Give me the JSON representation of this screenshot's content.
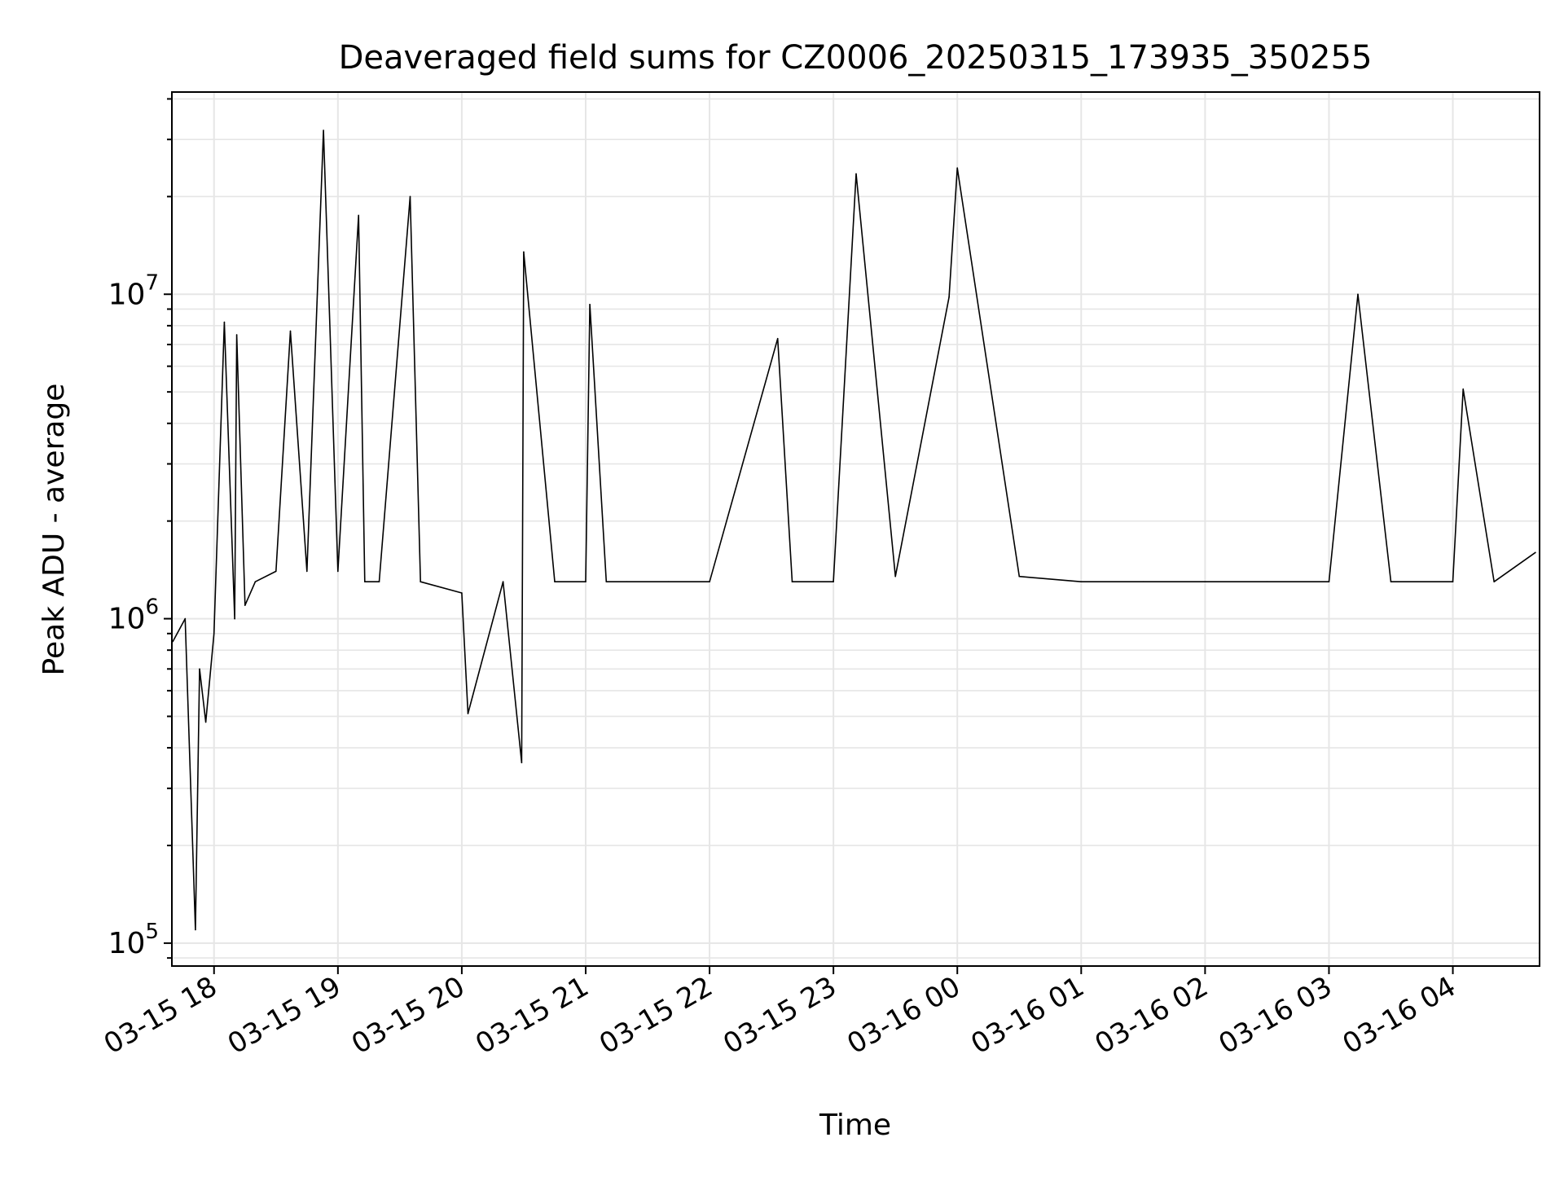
{
  "chart_data": {
    "type": "line",
    "title": "Deaveraged field sums for CZ0006_20250315_173935_350255",
    "xlabel": "Time",
    "ylabel": "Peak ADU - average",
    "y_scale": "log",
    "ylim": [
      85000,
      42000000
    ],
    "xlim": [
      "2025-03-15 17:39:35",
      "2025-03-16 04:42:00"
    ],
    "grid": true,
    "line_color": "#000000",
    "grid_color": "#e6e6e6",
    "x_ticks": [
      "2025-03-15 18:00",
      "2025-03-15 19:00",
      "2025-03-15 20:00",
      "2025-03-15 21:00",
      "2025-03-15 22:00",
      "2025-03-15 23:00",
      "2025-03-16 00:00",
      "2025-03-16 01:00",
      "2025-03-16 02:00",
      "2025-03-16 03:00",
      "2025-03-16 04:00"
    ],
    "x_tick_labels": [
      "03-15 18",
      "03-15 19",
      "03-15 20",
      "03-15 21",
      "03-15 22",
      "03-15 23",
      "03-16 00",
      "03-16 01",
      "03-16 02",
      "03-16 03",
      "03-16 04"
    ],
    "y_ticks": [
      100000,
      1000000,
      10000000
    ],
    "y_tick_labels": [
      {
        "base": "10",
        "exp": "5"
      },
      {
        "base": "10",
        "exp": "6"
      },
      {
        "base": "10",
        "exp": "7"
      }
    ],
    "series": [
      {
        "x": [
          "2025-03-15 17:40",
          "2025-03-15 17:46",
          "2025-03-15 17:51",
          "2025-03-15 17:53",
          "2025-03-15 17:56",
          "2025-03-15 18:00",
          "2025-03-15 18:05",
          "2025-03-15 18:10",
          "2025-03-15 18:11",
          "2025-03-15 18:15",
          "2025-03-15 18:20",
          "2025-03-15 18:30",
          "2025-03-15 18:37",
          "2025-03-15 18:45",
          "2025-03-15 18:53",
          "2025-03-15 19:00",
          "2025-03-15 19:10",
          "2025-03-15 19:13",
          "2025-03-15 19:20",
          "2025-03-15 19:35",
          "2025-03-15 19:40",
          "2025-03-15 20:00",
          "2025-03-15 20:03",
          "2025-03-15 20:20",
          "2025-03-15 20:29",
          "2025-03-15 20:30",
          "2025-03-15 20:45",
          "2025-03-15 21:00",
          "2025-03-15 21:02",
          "2025-03-15 21:10",
          "2025-03-15 21:20",
          "2025-03-15 21:40",
          "2025-03-15 22:00",
          "2025-03-15 22:33",
          "2025-03-15 22:40",
          "2025-03-15 23:00",
          "2025-03-15 23:11",
          "2025-03-15 23:30",
          "2025-03-15 23:56",
          "2025-03-16 00:00",
          "2025-03-16 00:30",
          "2025-03-16 01:00",
          "2025-03-16 01:30",
          "2025-03-16 02:00",
          "2025-03-16 02:30",
          "2025-03-16 03:00",
          "2025-03-16 03:14",
          "2025-03-16 03:30",
          "2025-03-16 04:00",
          "2025-03-16 04:05",
          "2025-03-16 04:20",
          "2025-03-16 04:40"
        ],
        "y": [
          850000,
          1000000,
          110000,
          700000,
          480000,
          900000,
          8200000,
          1000000,
          7500000,
          1100000,
          1300000,
          1400000,
          7700000,
          1400000,
          32000000,
          1400000,
          17500000,
          1300000,
          1300000,
          20000000,
          1300000,
          1200000,
          510000,
          1300000,
          360000,
          13500000,
          1300000,
          1300000,
          9300000,
          1300000,
          1300000,
          1300000,
          1300000,
          7300000,
          1300000,
          1300000,
          23500000,
          1350000,
          9800000,
          24500000,
          1350000,
          1300000,
          1300000,
          1300000,
          1300000,
          1300000,
          10000000,
          1300000,
          1300000,
          5100000,
          1300000,
          1600000
        ]
      }
    ]
  }
}
